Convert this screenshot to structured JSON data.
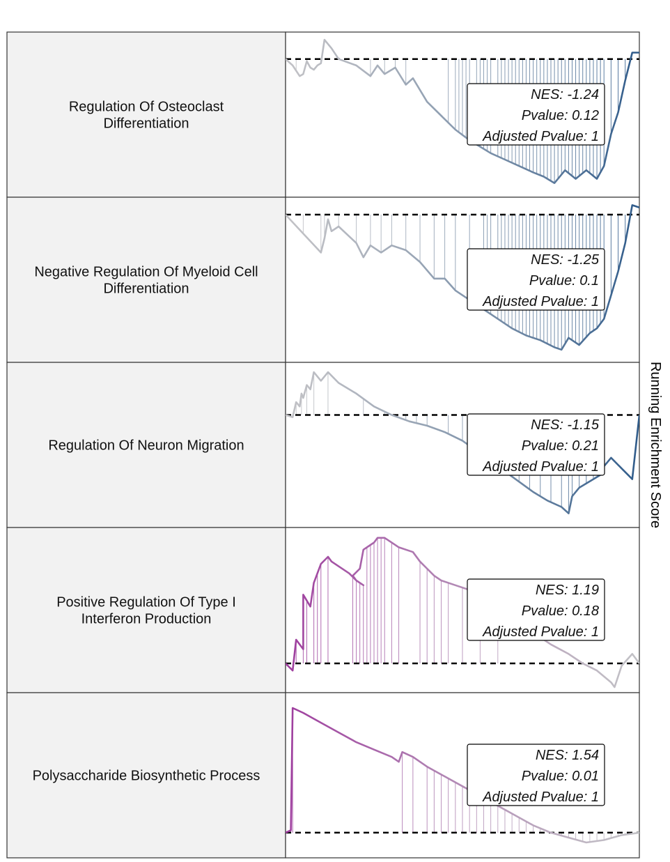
{
  "chart_data": {
    "type": "line",
    "ylabel": "Running Enrichment Score",
    "colors": {
      "positive": "#9E3D9E",
      "negative": "#2F5B8A",
      "neutral": "#C2C2C6"
    },
    "panels": [
      {
        "label": "Regulation Of Osteoclast Differentiation",
        "nes": "NES: -1.24",
        "pvalue": "Pvalue: 0.12",
        "padj": "Adjusted Pvalue: 1",
        "direction": "negative",
        "ylim": [
          -0.62,
          0.1
        ],
        "baseline": 0,
        "curve": [
          [
            0,
            0
          ],
          [
            0.02,
            -0.03
          ],
          [
            0.04,
            -0.08
          ],
          [
            0.05,
            -0.07
          ],
          [
            0.06,
            -0.01
          ],
          [
            0.07,
            -0.04
          ],
          [
            0.08,
            -0.05
          ],
          [
            0.09,
            -0.03
          ],
          [
            0.1,
            -0.02
          ],
          [
            0.11,
            0.09
          ],
          [
            0.13,
            0.05
          ],
          [
            0.15,
            0
          ],
          [
            0.2,
            -0.03
          ],
          [
            0.24,
            -0.08
          ],
          [
            0.26,
            -0.03
          ],
          [
            0.28,
            -0.07
          ],
          [
            0.31,
            -0.04
          ],
          [
            0.34,
            -0.12
          ],
          [
            0.36,
            -0.09
          ],
          [
            0.4,
            -0.2
          ],
          [
            0.48,
            -0.33
          ],
          [
            0.52,
            -0.38
          ],
          [
            0.55,
            -0.41
          ],
          [
            0.58,
            -0.44
          ],
          [
            0.62,
            -0.47
          ],
          [
            0.66,
            -0.5
          ],
          [
            0.7,
            -0.53
          ],
          [
            0.73,
            -0.55
          ],
          [
            0.76,
            -0.58
          ],
          [
            0.79,
            -0.52
          ],
          [
            0.82,
            -0.56
          ],
          [
            0.85,
            -0.52
          ],
          [
            0.88,
            -0.56
          ],
          [
            0.9,
            -0.5
          ],
          [
            0.92,
            -0.35
          ],
          [
            0.94,
            -0.25
          ],
          [
            0.96,
            -0.1
          ],
          [
            0.98,
            0.03
          ],
          [
            1,
            0.03
          ]
        ],
        "hits": [
          0.03,
          0.06,
          0.1,
          0.15,
          0.24,
          0.28,
          0.31,
          0.34,
          0.46,
          0.48,
          0.49,
          0.5,
          0.51,
          0.52,
          0.54,
          0.55,
          0.56,
          0.57,
          0.58,
          0.6,
          0.61,
          0.62,
          0.63,
          0.64,
          0.65,
          0.66,
          0.67,
          0.68,
          0.69,
          0.7,
          0.71,
          0.72,
          0.73,
          0.74,
          0.75,
          0.76,
          0.77,
          0.78,
          0.79,
          0.8,
          0.81,
          0.82,
          0.83,
          0.84,
          0.85,
          0.86,
          0.87,
          0.88,
          0.89,
          0.9,
          0.92,
          0.94,
          0.96
        ]
      },
      {
        "label": "Negative Regulation Of Myeloid Cell Differentiation",
        "nes": "NES: -1.25",
        "pvalue": "Pvalue: 0.1",
        "padj": "Adjusted Pvalue: 1",
        "direction": "negative",
        "ylim": [
          -0.6,
          0.05
        ],
        "baseline": 0,
        "curve": [
          [
            0,
            0
          ],
          [
            0.05,
            -0.08
          ],
          [
            0.1,
            -0.16
          ],
          [
            0.11,
            -0.1
          ],
          [
            0.12,
            -0.02
          ],
          [
            0.13,
            -0.07
          ],
          [
            0.15,
            -0.05
          ],
          [
            0.2,
            -0.12
          ],
          [
            0.22,
            -0.18
          ],
          [
            0.24,
            -0.13
          ],
          [
            0.27,
            -0.16
          ],
          [
            0.3,
            -0.13
          ],
          [
            0.34,
            -0.15
          ],
          [
            0.38,
            -0.2
          ],
          [
            0.42,
            -0.27
          ],
          [
            0.45,
            -0.27
          ],
          [
            0.48,
            -0.32
          ],
          [
            0.52,
            -0.36
          ],
          [
            0.56,
            -0.4
          ],
          [
            0.6,
            -0.44
          ],
          [
            0.64,
            -0.48
          ],
          [
            0.68,
            -0.51
          ],
          [
            0.72,
            -0.53
          ],
          [
            0.76,
            -0.56
          ],
          [
            0.78,
            -0.57
          ],
          [
            0.8,
            -0.52
          ],
          [
            0.83,
            -0.55
          ],
          [
            0.86,
            -0.5
          ],
          [
            0.88,
            -0.48
          ],
          [
            0.9,
            -0.44
          ],
          [
            0.92,
            -0.34
          ],
          [
            0.94,
            -0.24
          ],
          [
            0.96,
            -0.12
          ],
          [
            0.98,
            0.04
          ],
          [
            1,
            0.03
          ]
        ],
        "hits": [
          0.05,
          0.1,
          0.11,
          0.15,
          0.2,
          0.24,
          0.27,
          0.3,
          0.34,
          0.38,
          0.42,
          0.45,
          0.48,
          0.52,
          0.56,
          0.57,
          0.58,
          0.6,
          0.61,
          0.62,
          0.63,
          0.64,
          0.65,
          0.66,
          0.67,
          0.68,
          0.69,
          0.7,
          0.71,
          0.72,
          0.73,
          0.74,
          0.75,
          0.76,
          0.77,
          0.78,
          0.79,
          0.8,
          0.81,
          0.82,
          0.83,
          0.84,
          0.85,
          0.86,
          0.87,
          0.88,
          0.89,
          0.9,
          0.92,
          0.94,
          0.96
        ]
      },
      {
        "label": "Regulation Of Neuron Migration",
        "nes": "NES: -1.15",
        "pvalue": "Pvalue: 0.21",
        "padj": "Adjusted Pvalue: 1",
        "direction": "negative",
        "ylim": [
          -0.5,
          0.22
        ],
        "baseline": 0,
        "curve": [
          [
            0,
            0
          ],
          [
            0.02,
            -0.01
          ],
          [
            0.03,
            0.06
          ],
          [
            0.04,
            0.04
          ],
          [
            0.045,
            0.1
          ],
          [
            0.05,
            0.08
          ],
          [
            0.06,
            0.14
          ],
          [
            0.07,
            0.12
          ],
          [
            0.08,
            0.2
          ],
          [
            0.1,
            0.16
          ],
          [
            0.12,
            0.2
          ],
          [
            0.15,
            0.15
          ],
          [
            0.2,
            0.1
          ],
          [
            0.25,
            0.04
          ],
          [
            0.3,
            0
          ],
          [
            0.35,
            -0.03
          ],
          [
            0.4,
            -0.05
          ],
          [
            0.45,
            -0.08
          ],
          [
            0.5,
            -0.12
          ],
          [
            0.55,
            -0.18
          ],
          [
            0.6,
            -0.24
          ],
          [
            0.65,
            -0.3
          ],
          [
            0.7,
            -0.36
          ],
          [
            0.74,
            -0.4
          ],
          [
            0.78,
            -0.43
          ],
          [
            0.8,
            -0.46
          ],
          [
            0.81,
            -0.38
          ],
          [
            0.83,
            -0.34
          ],
          [
            0.85,
            -0.32
          ],
          [
            0.87,
            -0.3
          ],
          [
            0.89,
            -0.28
          ],
          [
            0.9,
            -0.24
          ],
          [
            0.92,
            -0.2
          ],
          [
            0.95,
            -0.25
          ],
          [
            0.98,
            -0.3
          ],
          [
            1,
            0
          ]
        ],
        "hits": [
          0.03,
          0.045,
          0.06,
          0.08,
          0.12,
          0.22,
          0.28,
          0.34,
          0.37,
          0.4,
          0.46,
          0.5,
          0.52,
          0.55,
          0.6,
          0.63,
          0.66,
          0.69,
          0.72,
          0.75,
          0.78,
          0.8,
          0.81,
          0.83,
          0.85,
          0.87,
          0.89,
          0.9,
          1
        ]
      },
      {
        "label": "Positive Regulation Of Type I Interferon Production",
        "nes": "NES: 1.19",
        "pvalue": "Pvalue: 0.18",
        "padj": "Adjusted Pvalue: 1",
        "direction": "positive",
        "ylim": [
          -0.1,
          0.55
        ],
        "baseline": 0,
        "curve": [
          [
            0,
            0
          ],
          [
            0.02,
            -0.03
          ],
          [
            0.03,
            0.1
          ],
          [
            0.05,
            0.06
          ],
          [
            0.05,
            0.29
          ],
          [
            0.07,
            0.24
          ],
          [
            0.08,
            0.34
          ],
          [
            0.09,
            0.38
          ],
          [
            0.1,
            0.42
          ],
          [
            0.12,
            0.45
          ],
          [
            0.13,
            0.43
          ],
          [
            0.18,
            0.38
          ],
          [
            0.2,
            0.35
          ],
          [
            0.22,
            0.33
          ],
          [
            0.2,
            0.35
          ],
          [
            0.19,
            0.37
          ],
          [
            0.21,
            0.4
          ],
          [
            0.22,
            0.48
          ],
          [
            0.24,
            0.5
          ],
          [
            0.25,
            0.51
          ],
          [
            0.26,
            0.53
          ],
          [
            0.28,
            0.53
          ],
          [
            0.3,
            0.51
          ],
          [
            0.32,
            0.49
          ],
          [
            0.36,
            0.47
          ],
          [
            0.38,
            0.43
          ],
          [
            0.4,
            0.4
          ],
          [
            0.42,
            0.37
          ],
          [
            0.44,
            0.35
          ],
          [
            0.48,
            0.33
          ],
          [
            0.52,
            0.31
          ],
          [
            0.55,
            0.28
          ],
          [
            0.6,
            0.23
          ],
          [
            0.65,
            0.18
          ],
          [
            0.7,
            0.13
          ],
          [
            0.75,
            0.08
          ],
          [
            0.8,
            0.04
          ],
          [
            0.84,
            0
          ],
          [
            0.88,
            -0.03
          ],
          [
            0.92,
            -0.08
          ],
          [
            0.93,
            -0.1
          ],
          [
            0.95,
            -0.01
          ],
          [
            0.98,
            0.04
          ],
          [
            1,
            0
          ]
        ],
        "hits": [
          0.03,
          0.05,
          0.06,
          0.08,
          0.09,
          0.1,
          0.12,
          0.19,
          0.2,
          0.21,
          0.22,
          0.23,
          0.24,
          0.25,
          0.26,
          0.27,
          0.28,
          0.3,
          0.32,
          0.38,
          0.4,
          0.42,
          0.44,
          0.46,
          0.5,
          0.55,
          0.6
        ]
      },
      {
        "label": "Polysaccharide Biosynthetic Process",
        "nes": "NES: 1.54",
        "pvalue": "Pvalue: 0.01",
        "padj": "Adjusted Pvalue: 1",
        "direction": "positive",
        "ylim": [
          -0.08,
          0.55
        ],
        "baseline": 0,
        "curve": [
          [
            0,
            0
          ],
          [
            0.015,
            0.01
          ],
          [
            0.02,
            0.51
          ],
          [
            0.05,
            0.49
          ],
          [
            0.1,
            0.45
          ],
          [
            0.15,
            0.41
          ],
          [
            0.2,
            0.37
          ],
          [
            0.25,
            0.34
          ],
          [
            0.3,
            0.31
          ],
          [
            0.32,
            0.29
          ],
          [
            0.33,
            0.33
          ],
          [
            0.36,
            0.31
          ],
          [
            0.4,
            0.27
          ],
          [
            0.45,
            0.23
          ],
          [
            0.5,
            0.19
          ],
          [
            0.55,
            0.15
          ],
          [
            0.6,
            0.11
          ],
          [
            0.65,
            0.07
          ],
          [
            0.7,
            0.03
          ],
          [
            0.75,
            0
          ],
          [
            0.8,
            -0.02
          ],
          [
            0.85,
            -0.04
          ],
          [
            0.9,
            -0.03
          ],
          [
            0.95,
            -0.01
          ],
          [
            1,
            0
          ]
        ],
        "hits": [
          0.015,
          0.02,
          0.33,
          0.36,
          0.4,
          0.42,
          0.44,
          0.46,
          0.48,
          0.5,
          0.52,
          0.54,
          0.56,
          0.58,
          0.6,
          0.62,
          0.64,
          0.66,
          0.68,
          0.7,
          0.72,
          0.74,
          0.76,
          0.78,
          0.8,
          0.82,
          0.84,
          0.86,
          0.88,
          0.9,
          0.92,
          0.94,
          0.96
        ]
      }
    ]
  }
}
